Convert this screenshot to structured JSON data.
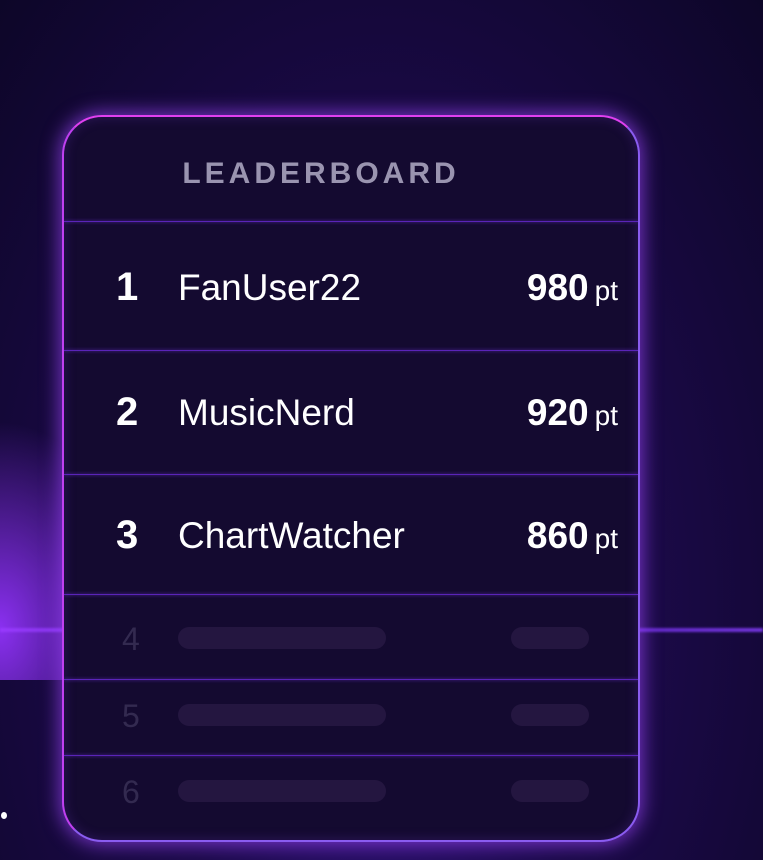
{
  "leaderboard": {
    "title": "LEADERBOARD",
    "entries": [
      {
        "rank": "1",
        "name": "FanUser22",
        "score": "980",
        "unit": "pt"
      },
      {
        "rank": "2",
        "name": "MusicNerd",
        "score": "920",
        "unit": "pt"
      },
      {
        "rank": "3",
        "name": "ChartWatcher",
        "score": "860",
        "unit": "pt"
      }
    ],
    "placeholders": [
      {
        "rank": "4"
      },
      {
        "rank": "5"
      },
      {
        "rank": "6"
      }
    ]
  },
  "colors": {
    "accent": "#8a5cf0",
    "glow_top": "#e040f0",
    "card_bg": "#140a30"
  }
}
